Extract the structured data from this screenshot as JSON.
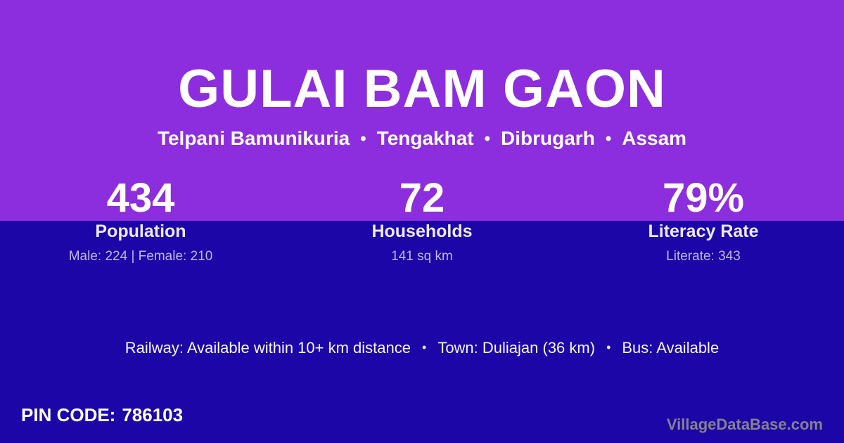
{
  "colors": {
    "top-background": "#8C2DDE",
    "bottom-background": "#1C06A8",
    "title-text": "#FFFFFF",
    "stat-label-text": "#EDE9FA",
    "stat-detail-text": "#C0B5E8",
    "watermark-text": "#85828E"
  },
  "header": {
    "title": "GULAI BAM GAON",
    "breadcrumb": [
      "Telpani Bamunikuria",
      "Tengakhat",
      "Dibrugarh",
      "Assam"
    ],
    "separator": "•"
  },
  "stats": [
    {
      "value": "434",
      "label": "Population",
      "detail": "Male: 224 | Female: 210"
    },
    {
      "value": "72",
      "label": "Households",
      "detail": "141 sq km"
    },
    {
      "value": "79%",
      "label": "Literacy Rate",
      "detail": "Literate: 343"
    }
  ],
  "transport": {
    "items": [
      "Railway: Available within 10+ km distance",
      "Town: Duliajan (36 km)",
      "Bus: Available"
    ],
    "separator": "•"
  },
  "footer": {
    "pin_label": "PIN CODE:",
    "pin_value": "786103",
    "watermark": "VillageDataBase.com"
  }
}
